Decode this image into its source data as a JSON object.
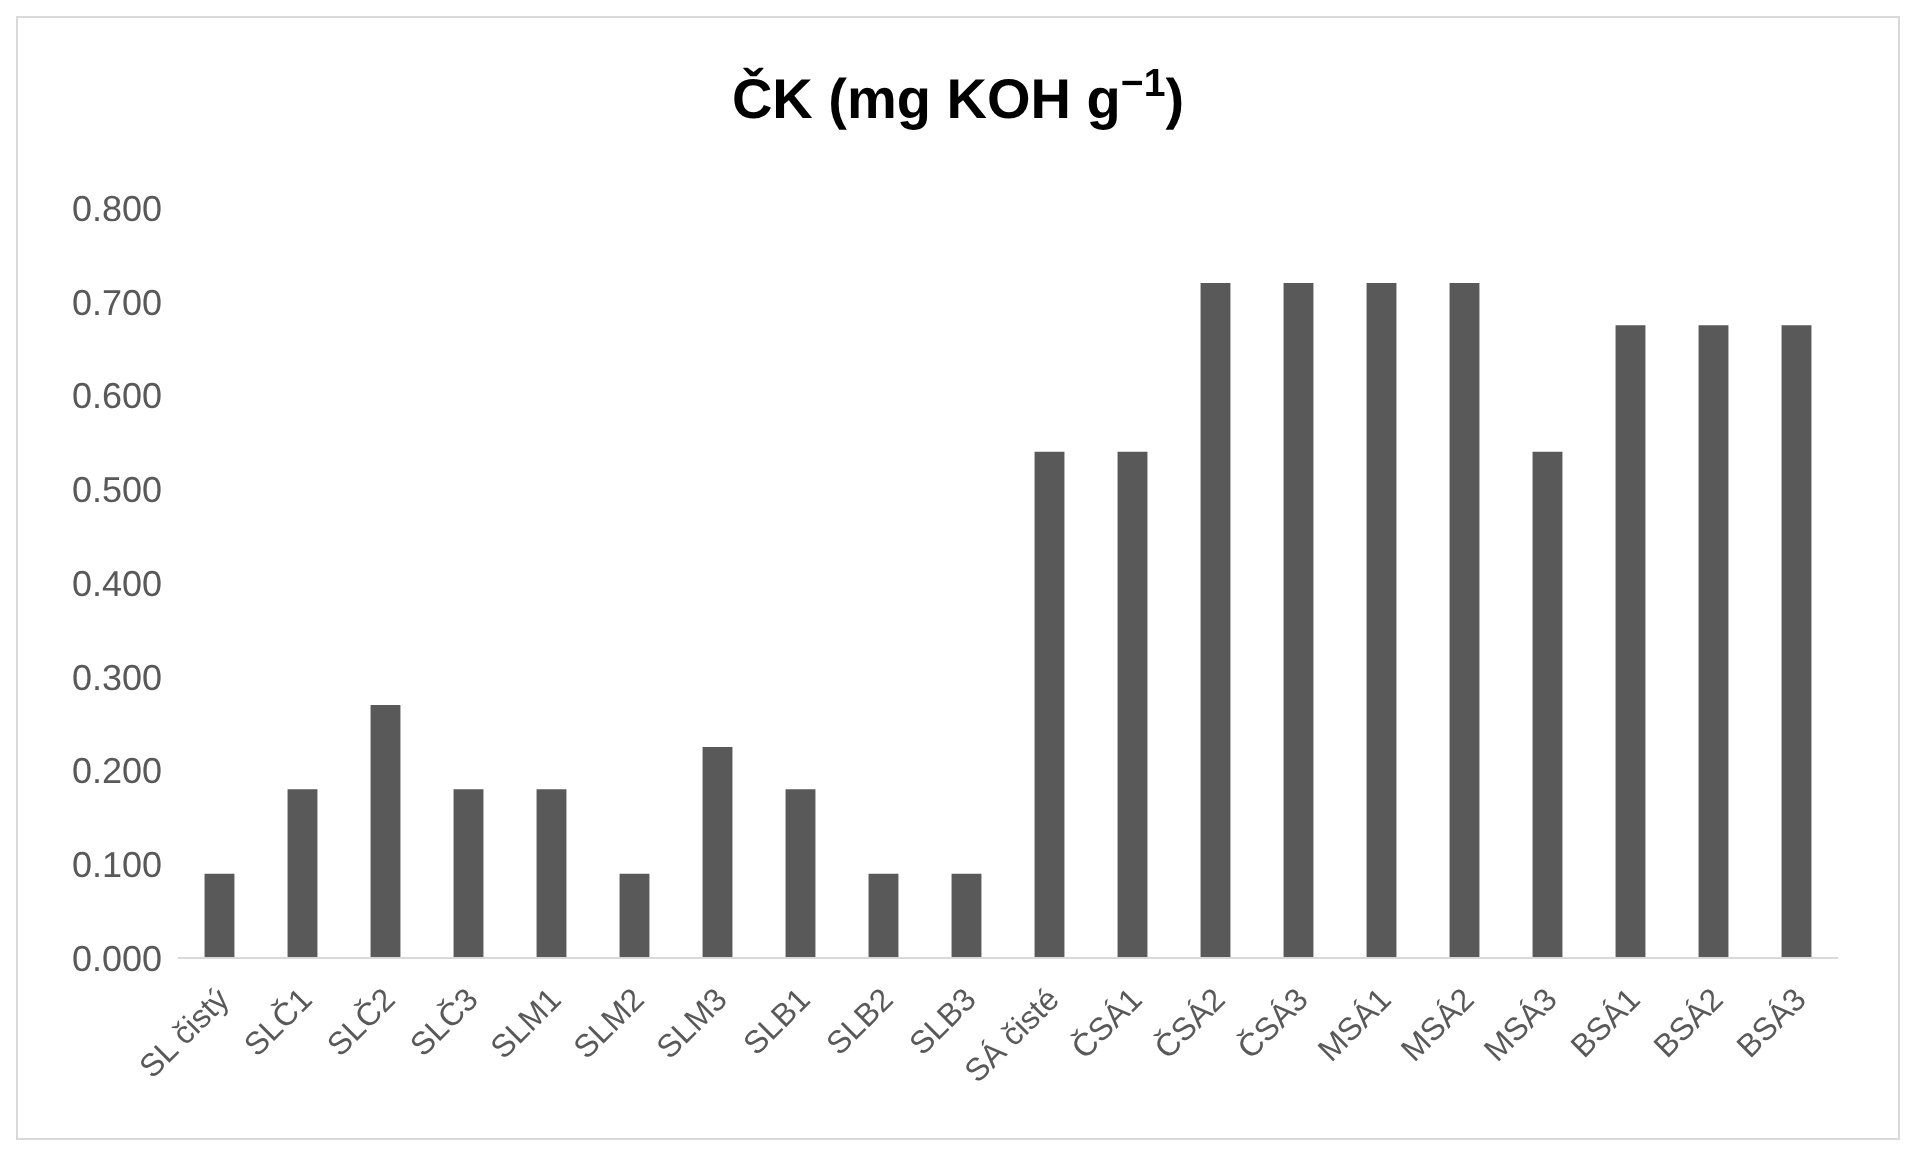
{
  "chart_data": {
    "type": "bar",
    "title": "ČK (mg KOH g$^{−1}$)",
    "categories": [
      "SL čistý",
      "SLČ1",
      "SLČ2",
      "SLČ3",
      "SLM1",
      "SLM2",
      "SLM3",
      "SLB1",
      "SLB2",
      "SLB3",
      "SÁ čisté",
      "ČSÁ1",
      "ČSÁ2",
      "ČSÁ3",
      "MSÁ1",
      "MSÁ2",
      "MSÁ3",
      "BSÁ1",
      "BSÁ2",
      "BSÁ3"
    ],
    "values": [
      0.09,
      0.18,
      0.27,
      0.18,
      0.18,
      0.09,
      0.225,
      0.18,
      0.09,
      0.09,
      0.54,
      0.54,
      0.72,
      0.72,
      0.72,
      0.72,
      0.54,
      0.675,
      0.675,
      0.675
    ],
    "color": "#595959",
    "ylim": [
      0,
      0.8
    ],
    "yticks": [
      {
        "value": 0,
        "label": "0.000"
      },
      {
        "value": 0.1,
        "label": "0.100"
      },
      {
        "value": 0.2,
        "label": "0.200"
      },
      {
        "value": 0.3,
        "label": "0.300"
      },
      {
        "value": 0.4,
        "label": "0.400"
      },
      {
        "value": 0.5,
        "label": "0.500"
      },
      {
        "value": 0.6,
        "label": "0.600"
      },
      {
        "value": 0.7,
        "label": "0.700"
      },
      {
        "value": 0.8,
        "label": "0.800"
      }
    ],
    "grid": false
  }
}
